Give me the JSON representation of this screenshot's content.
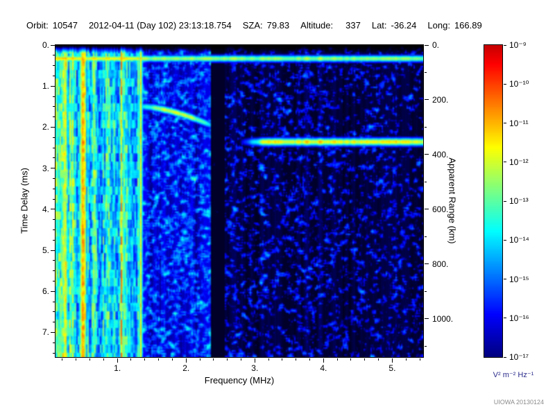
{
  "header": {
    "orbit_label": "Orbit:",
    "orbit_value": "10547",
    "datetime": "2012-04-11 (Day 102) 23:13:18.754",
    "sza_label": "SZA:",
    "sza_value": "79.83",
    "altitude_label": "Altitude:",
    "altitude_value": "337",
    "lat_label": "Lat:",
    "lat_value": "-36.24",
    "long_label": "Long:",
    "long_value": "166.89"
  },
  "chart_data": {
    "type": "heatmap",
    "xlabel": "Frequency (MHz)",
    "ylabel_left": "Time Delay (ms)",
    "ylabel_right": "Apparent Range (km)",
    "x_tick_values": [
      1,
      2,
      3,
      4,
      5
    ],
    "x_tick_labels": [
      "1.",
      "2.",
      "3.",
      "4.",
      "5."
    ],
    "x_minor_step": 0.2,
    "y_tick_values": [
      0,
      1,
      2,
      3,
      4,
      5,
      6,
      7
    ],
    "y_tick_labels": [
      "0.",
      "1.",
      "2.",
      "3.",
      "4.",
      "5.",
      "6.",
      "7."
    ],
    "y_minor_step": 0.25,
    "right_tick_values": [
      0,
      200,
      400,
      600,
      800,
      1000
    ],
    "right_tick_labels": [
      "0.",
      "200.",
      "400.",
      "600.",
      "800.",
      "1000."
    ],
    "right_minor_step": 100,
    "colorbar": {
      "scale": "log",
      "tick_labels": [
        "10⁻⁹",
        "10⁻¹⁰",
        "10⁻¹¹",
        "10⁻¹²",
        "10⁻¹³",
        "10⁻¹⁴",
        "10⁻¹⁵",
        "10⁻¹⁶",
        "10⁻¹⁷"
      ],
      "unit_label": "V² m⁻² Hz⁻¹"
    },
    "render": {
      "x_range": [
        0.1,
        5.45
      ],
      "y_range": [
        0,
        7.6
      ],
      "km_per_ms": 150,
      "regions": [
        {
          "type": "striped",
          "name": "electron-plasma-oscillation-stripes",
          "f0": 0.1,
          "f1": 1.32
        },
        {
          "type": "speckle",
          "name": "mid-band-noise",
          "f0": 1.32,
          "f1": 2.36,
          "base": 0.1,
          "thr": 0.46,
          "gain": 0.95,
          "colmod": 0.08
        },
        {
          "type": "dark",
          "name": "interference-gap",
          "f0": 2.36,
          "f1": 2.56
        },
        {
          "type": "speckle",
          "name": "high-band-noise",
          "f0": 2.56,
          "f1": 5.46,
          "base": 0.045,
          "thr": 0.5,
          "gain": 0.85,
          "thr_slope": 0.012,
          "colmod": 0.05
        }
      ],
      "vlines": [
        {
          "f": 0.24,
          "width": 0.03,
          "intensity": 0.62
        },
        {
          "f": 0.5,
          "width": 0.04,
          "intensity": 0.74
        },
        {
          "f": 1.34,
          "width": 0.02,
          "intensity": 0.66
        }
      ],
      "lines": [
        {
          "kind": "hline",
          "name": "surface-echo-line",
          "d": 0.33,
          "f0": 0.1,
          "f1": 5.46,
          "width": 0.055,
          "intensity": 0.55,
          "boost_f": 1.32,
          "boost": 0.12
        },
        {
          "kind": "arc",
          "name": "ionospheric-echo-trace",
          "f0": 1.36,
          "f1": 2.36,
          "d0": 1.5,
          "d1": 1.95,
          "width": 0.06,
          "intensity": 0.62,
          "exp": 1.6
        },
        {
          "kind": "hline",
          "name": "ground-echo-line",
          "d": 2.36,
          "f0": 2.75,
          "f1": 5.46,
          "width": 0.065,
          "intensity": 0.66,
          "edge_ramp": 0.4
        }
      ]
    }
  },
  "credit": "UIOWA 20130124",
  "colors": {
    "unit_text": "#2b2b8c",
    "credit_text": "#8a8a8a",
    "axis_text": "#000000"
  }
}
